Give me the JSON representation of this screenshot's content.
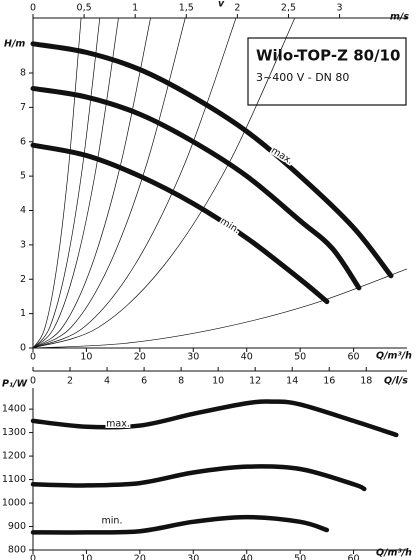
{
  "chart_data": [
    {
      "type": "line",
      "title": "Wilo-TOP-Z 80/10",
      "subtitle": "3~400 V - DN 80",
      "ylabel": "H/m",
      "xlabel": "Q/m³/h",
      "xlim": [
        0,
        70
      ],
      "xticks": [
        0,
        10,
        20,
        30,
        40,
        50,
        60
      ],
      "ylim": [
        0,
        9.6
      ],
      "yticks": [
        0,
        1,
        2,
        3,
        4,
        5,
        6,
        7,
        8
      ],
      "grid": false,
      "top_axis": {
        "label": "v",
        "unit": "m/s",
        "lim": [
          0,
          3.66
        ],
        "ticks": [
          0,
          {
            "value": 0.5,
            "label": "0,5"
          },
          1,
          {
            "value": 1.5,
            "label": "1,5"
          },
          2,
          {
            "value": 2.5,
            "label": "2,5"
          },
          3
        ]
      },
      "series": [
        {
          "name": "max.",
          "color": "#111111",
          "x": [
            0,
            10,
            20,
            30,
            40,
            50,
            60,
            67
          ],
          "values": [
            8.85,
            8.6,
            8.1,
            7.3,
            6.3,
            5.0,
            3.5,
            2.1
          ]
        },
        {
          "color": "#111111",
          "x": [
            0,
            10,
            20,
            30,
            40,
            50,
            56,
            61
          ],
          "values": [
            7.55,
            7.3,
            6.8,
            6.0,
            5.0,
            3.7,
            2.9,
            1.75
          ]
        },
        {
          "name": "min.",
          "color": "#111111",
          "x": [
            0,
            10,
            20,
            30,
            40,
            50,
            55
          ],
          "values": [
            5.9,
            5.6,
            5.0,
            4.2,
            3.2,
            2.0,
            1.35
          ]
        }
      ],
      "system_curves": [
        {
          "x": [
            0,
            2.25,
            4.5,
            6.75,
            9
          ],
          "values": [
            0,
            0.6,
            2.4,
            5.4,
            9.6
          ]
        },
        {
          "x": [
            0,
            3.125,
            6.25,
            9.375,
            12.5
          ],
          "values": [
            0,
            0.6,
            2.4,
            5.4,
            9.6
          ]
        },
        {
          "x": [
            0,
            4,
            8,
            12,
            16
          ],
          "values": [
            0,
            0.6,
            2.4,
            5.4,
            9.6
          ]
        },
        {
          "x": [
            0,
            5.5,
            11,
            16.5,
            22
          ],
          "values": [
            0,
            0.6,
            2.4,
            5.4,
            9.6
          ]
        },
        {
          "x": [
            0,
            7.125,
            14.25,
            21.375,
            28.5
          ],
          "values": [
            0,
            0.6,
            2.4,
            5.4,
            9.6
          ]
        },
        {
          "x": [
            0,
            9.5,
            19,
            28.5,
            38
          ],
          "values": [
            0,
            0.6,
            2.4,
            5.4,
            9.6
          ]
        },
        {
          "x": [
            0,
            12.25,
            24.5,
            36.75,
            49
          ],
          "values": [
            0,
            0.6,
            2.4,
            5.4,
            9.6
          ]
        },
        {
          "x": [
            0,
            17.5,
            35,
            52.5,
            70
          ],
          "values": [
            0,
            0.14,
            0.58,
            1.29,
            2.3
          ]
        }
      ],
      "flow_axis": {
        "label": "Q/l/s",
        "lim": [
          0,
          20.2
        ],
        "ticks": [
          0,
          2,
          4,
          6,
          8,
          10,
          12,
          14,
          16,
          18
        ]
      }
    },
    {
      "type": "line",
      "ylabel": "P₁/W",
      "xlabel": "Q/m³/h",
      "xlim": [
        0,
        70
      ],
      "xticks": [
        0,
        10,
        20,
        30,
        40,
        50,
        60
      ],
      "ylim": [
        800,
        1490
      ],
      "yticks": [
        800,
        900,
        1000,
        1100,
        1200,
        1300,
        1400
      ],
      "grid": false,
      "series": [
        {
          "name": "max.",
          "color": "#111111",
          "x": [
            0,
            10,
            20,
            30,
            40,
            45,
            50,
            60,
            68
          ],
          "values": [
            1350,
            1325,
            1330,
            1380,
            1425,
            1432,
            1420,
            1350,
            1290
          ]
        },
        {
          "color": "#111111",
          "x": [
            0,
            10,
            20,
            30,
            40,
            50,
            60,
            62
          ],
          "values": [
            1080,
            1075,
            1085,
            1130,
            1155,
            1145,
            1080,
            1060
          ]
        },
        {
          "name": "min.",
          "color": "#111111",
          "x": [
            0,
            10,
            20,
            30,
            40,
            50,
            55
          ],
          "values": [
            875,
            875,
            880,
            920,
            940,
            920,
            885
          ]
        }
      ]
    }
  ]
}
